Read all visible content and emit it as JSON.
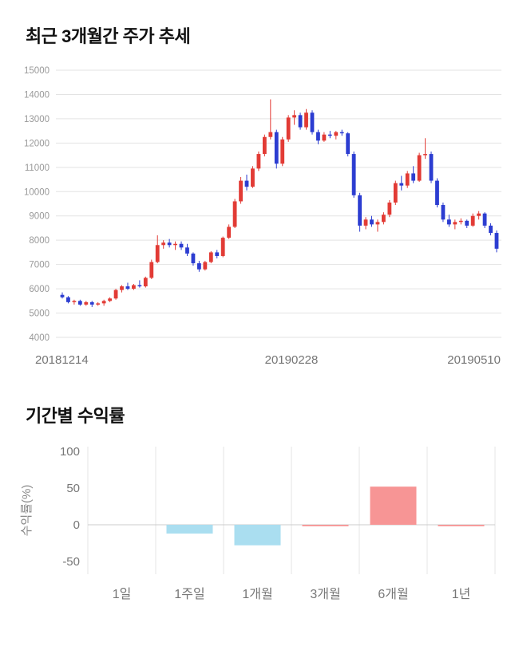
{
  "sections": {
    "price_trend": {
      "title": "최근 3개월간 주가 추세"
    },
    "returns": {
      "title": "기간별 수익률"
    }
  },
  "chart_data": [
    {
      "type": "candlestick",
      "title": "최근 3개월간 주가 추세",
      "ylim": [
        4000,
        15000
      ],
      "y_ticks": [
        15000,
        14000,
        13000,
        12000,
        11000,
        10000,
        9000,
        8000,
        7000,
        6000,
        5000,
        4000
      ],
      "x_tick_labels": [
        "20181214",
        "20190228",
        "20190510"
      ],
      "grid": true,
      "colors": {
        "bullish": "#e23b35",
        "bearish": "#2c3dd1",
        "grid": "#e3e3e3",
        "axis_text": "#999999",
        "date_text": "#757575"
      },
      "candles": [
        [
          5750,
          5850,
          5600,
          5650
        ],
        [
          5650,
          5700,
          5400,
          5450
        ],
        [
          5450,
          5550,
          5350,
          5500
        ],
        [
          5500,
          5550,
          5300,
          5350
        ],
        [
          5350,
          5500,
          5300,
          5450
        ],
        [
          5450,
          5500,
          5250,
          5350
        ],
        [
          5350,
          5450,
          5300,
          5400
        ],
        [
          5400,
          5550,
          5300,
          5500
        ],
        [
          5500,
          5650,
          5450,
          5600
        ],
        [
          5600,
          6000,
          5550,
          5950
        ],
        [
          5950,
          6150,
          5850,
          6100
        ],
        [
          6100,
          6250,
          5950,
          6000
        ],
        [
          6000,
          6200,
          5950,
          6150
        ],
        [
          6150,
          6350,
          6050,
          6100
        ],
        [
          6100,
          6500,
          6050,
          6450
        ],
        [
          6450,
          7200,
          6400,
          7100
        ],
        [
          7100,
          8200,
          7050,
          7800
        ],
        [
          7800,
          8000,
          7650,
          7900
        ],
        [
          7900,
          8050,
          7700,
          7800
        ],
        [
          7800,
          7950,
          7600,
          7850
        ],
        [
          7850,
          7950,
          7600,
          7700
        ],
        [
          7700,
          7850,
          7350,
          7450
        ],
        [
          7450,
          7500,
          6950,
          7050
        ],
        [
          7050,
          7150,
          6700,
          6800
        ],
        [
          6800,
          7150,
          6750,
          7100
        ],
        [
          7100,
          7550,
          7050,
          7500
        ],
        [
          7500,
          7600,
          7250,
          7350
        ],
        [
          7350,
          8150,
          7300,
          8100
        ],
        [
          8100,
          8650,
          8050,
          8550
        ],
        [
          8550,
          9700,
          8500,
          9600
        ],
        [
          9600,
          10600,
          9500,
          10450
        ],
        [
          10450,
          10700,
          10050,
          10200
        ],
        [
          10200,
          11050,
          10150,
          10950
        ],
        [
          10950,
          11650,
          10850,
          11550
        ],
        [
          11550,
          12350,
          11450,
          12250
        ],
        [
          12250,
          13800,
          12150,
          12450
        ],
        [
          12450,
          12550,
          10950,
          11150
        ],
        [
          11150,
          12250,
          11050,
          12150
        ],
        [
          12150,
          13150,
          12050,
          13050
        ],
        [
          13050,
          13350,
          12750,
          13150
        ],
        [
          13150,
          13250,
          12550,
          12650
        ],
        [
          12650,
          13400,
          12550,
          13250
        ],
        [
          13250,
          13350,
          12350,
          12450
        ],
        [
          12450,
          12550,
          11950,
          12100
        ],
        [
          12100,
          12450,
          12050,
          12350
        ],
        [
          12350,
          12500,
          12200,
          12300
        ],
        [
          12300,
          12500,
          12150,
          12450
        ],
        [
          12450,
          12550,
          12300,
          12400
        ],
        [
          12400,
          12450,
          11450,
          11550
        ],
        [
          11550,
          11650,
          9750,
          9850
        ],
        [
          9850,
          9950,
          8350,
          8600
        ],
        [
          8600,
          8950,
          8450,
          8850
        ],
        [
          8850,
          9000,
          8550,
          8650
        ],
        [
          8650,
          8850,
          8350,
          8750
        ],
        [
          8750,
          9150,
          8650,
          9050
        ],
        [
          9050,
          9650,
          8950,
          9550
        ],
        [
          9550,
          10450,
          9450,
          10350
        ],
        [
          10350,
          10650,
          10050,
          10250
        ],
        [
          10250,
          10850,
          10150,
          10750
        ],
        [
          10750,
          11050,
          10350,
          10450
        ],
        [
          10450,
          11600,
          10400,
          11500
        ],
        [
          11500,
          12200,
          11350,
          11550
        ],
        [
          11550,
          11650,
          10350,
          10450
        ],
        [
          10450,
          10550,
          9350,
          9450
        ],
        [
          9450,
          9550,
          8750,
          8850
        ],
        [
          8850,
          9050,
          8550,
          8650
        ],
        [
          8650,
          8850,
          8450,
          8750
        ],
        [
          8750,
          8900,
          8650,
          8800
        ],
        [
          8800,
          8850,
          8500,
          8600
        ],
        [
          8600,
          9100,
          8550,
          9000
        ],
        [
          9000,
          9200,
          8850,
          9100
        ],
        [
          9100,
          9150,
          8500,
          8600
        ],
        [
          8600,
          8700,
          8200,
          8300
        ],
        [
          8300,
          8400,
          7500,
          7650
        ]
      ]
    },
    {
      "type": "bar",
      "title": "기간별 수익률",
      "categories": [
        "1일",
        "1주일",
        "1개월",
        "3개월",
        "6개월",
        "1년"
      ],
      "values": [
        0,
        -12,
        -28,
        -2,
        52,
        -2
      ],
      "bar_colors": [
        "#aadef0",
        "#aadef0",
        "#aadef0",
        "#f79595",
        "#f79595",
        "#f79595"
      ],
      "ylabel": "수익률(%)",
      "y_ticks": [
        100,
        50,
        0,
        -50
      ],
      "ylim": [
        -50,
        100
      ],
      "grid": true,
      "colors": {
        "grid": "#e5e5e5",
        "zero_line": "#cccccc",
        "axis_text": "#777777",
        "ylabel_text": "#888888"
      }
    }
  ]
}
